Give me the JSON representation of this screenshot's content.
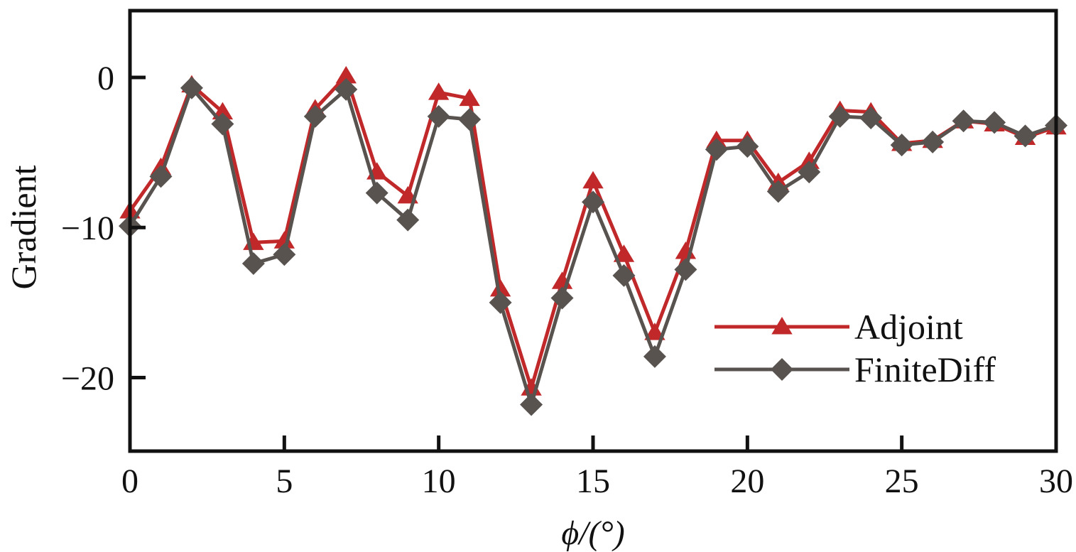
{
  "chart_data": {
    "type": "line",
    "title": "",
    "xlabel": "ϕ/(°)",
    "ylabel": "Gradient",
    "xlim": [
      0,
      30
    ],
    "ylim": [
      -24.9,
      4.45
    ],
    "xticks": [
      0,
      5,
      10,
      15,
      20,
      25,
      30
    ],
    "yticks": [
      0,
      -10,
      -20
    ],
    "xtick_labels": [
      "0",
      "5",
      "10",
      "15",
      "20",
      "25",
      "30"
    ],
    "ytick_labels": [
      "0",
      "−10",
      "−20"
    ],
    "grid": false,
    "legend_position": "bottom-right",
    "x": [
      0,
      1,
      2,
      3,
      4,
      5,
      6,
      7,
      8,
      9,
      10,
      11,
      12,
      13,
      14,
      15,
      16,
      17,
      18,
      19,
      20,
      21,
      22,
      23,
      24,
      25,
      26,
      27,
      28,
      29,
      30
    ],
    "series": [
      {
        "name": "Adjoint",
        "marker": "triangle",
        "color": "#c0282a",
        "values": [
          -8.9,
          -6.0,
          -0.5,
          -2.3,
          -11.0,
          -10.9,
          -2.1,
          0.1,
          -6.3,
          -7.9,
          -1.0,
          -1.4,
          -14.1,
          -20.7,
          -13.6,
          -6.9,
          -11.8,
          -17.0,
          -11.6,
          -4.2,
          -4.2,
          -7.0,
          -5.6,
          -2.2,
          -2.3,
          -4.4,
          -4.2,
          -2.9,
          -3.1,
          -4.0,
          -3.3
        ]
      },
      {
        "name": "FiniteDiff",
        "marker": "diamond",
        "color": "#595350",
        "values": [
          -9.9,
          -6.6,
          -0.7,
          -3.1,
          -12.4,
          -11.8,
          -2.6,
          -0.8,
          -7.7,
          -9.5,
          -2.6,
          -2.8,
          -15.0,
          -21.8,
          -14.7,
          -8.3,
          -13.2,
          -18.6,
          -12.8,
          -4.8,
          -4.6,
          -7.6,
          -6.3,
          -2.6,
          -2.7,
          -4.5,
          -4.3,
          -2.9,
          -3.0,
          -3.9,
          -3.2
        ]
      }
    ]
  }
}
